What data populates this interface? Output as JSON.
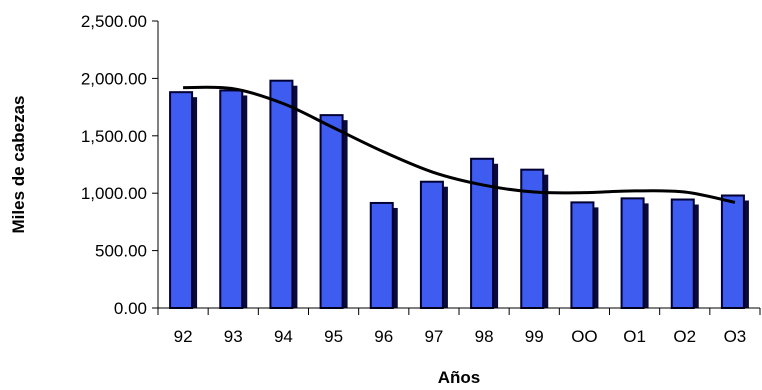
{
  "chart_data": {
    "type": "bar",
    "xlabel": "Años",
    "ylabel": "Miles de cabezas",
    "categories": [
      "92",
      "93",
      "94",
      "95",
      "96",
      "97",
      "98",
      "99",
      "OO",
      "O1",
      "O2",
      "O3"
    ],
    "series": [
      {
        "values": [
          1880,
          1895,
          1980,
          1680,
          915,
          1100,
          1300,
          1205,
          920,
          955,
          945,
          980
        ],
        "color": "#3f5cf0"
      }
    ],
    "trendline": {
      "type": "polynomial",
      "values": [
        1920,
        1910,
        1780,
        1570,
        1360,
        1180,
        1070,
        1010,
        1005,
        1020,
        1010,
        920
      ],
      "color": "#000000"
    },
    "ylim": [
      0,
      2500
    ],
    "yticks": [
      0,
      500,
      1000,
      1500,
      2000,
      2500
    ],
    "ytick_labels": [
      "0.00",
      "500.00",
      "1,000.00",
      "1,500.00",
      "2,000.00",
      "2,500.00"
    ],
    "grid": false,
    "legend": "none"
  }
}
